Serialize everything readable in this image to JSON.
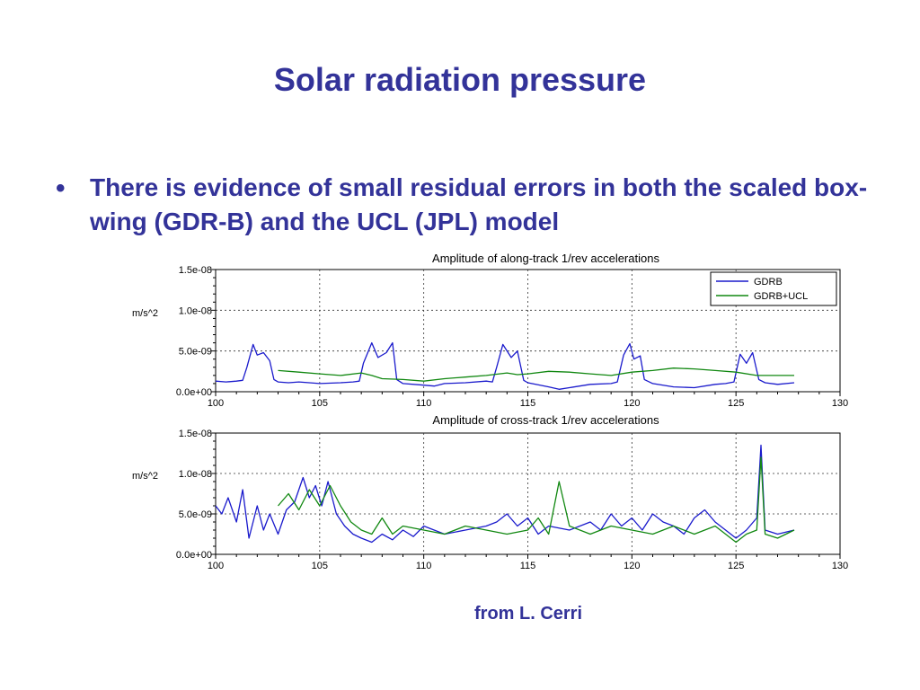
{
  "slide": {
    "title": "Solar radiation pressure",
    "bullet_marker": "•",
    "bullet_text": "There is evidence of small residual errors in both the scaled box-wing (GDR-B) and the UCL (JPL) model",
    "credit": "from L. Cerri"
  },
  "colors": {
    "title": "#333399",
    "gdrb": "#1a1acc",
    "gdrb_ucl": "#118811",
    "grid": "#333333"
  },
  "chart_data": [
    {
      "type": "line",
      "title": "Amplitude of along-track 1/rev accelerations",
      "ylabel": "m/s^2",
      "xlim": [
        100,
        130
      ],
      "ylim": [
        0,
        1.5e-08
      ],
      "xticks": [
        100,
        105,
        110,
        115,
        120,
        125,
        130
      ],
      "xtick_labels": [
        "100",
        "105",
        "110",
        "115",
        "120",
        "125",
        "130"
      ],
      "yticks": [
        0,
        5e-09,
        1e-08,
        1.5e-08
      ],
      "ytick_labels": [
        "0.0e+00",
        "5.0e-09",
        "1.0e-08",
        "1.5e-08"
      ],
      "grid": true,
      "legend": "top-right",
      "series": [
        {
          "name": "GDRB",
          "color": "#1a1acc",
          "x": [
            100,
            100.5,
            101,
            101.3,
            101.5,
            101.8,
            102,
            102.3,
            102.6,
            102.8,
            103,
            103.5,
            104,
            105,
            106,
            106.6,
            106.9,
            107.1,
            107.5,
            107.8,
            108.2,
            108.5,
            108.7,
            109,
            110,
            110.5,
            111,
            112,
            113,
            113.3,
            113.5,
            113.8,
            114.2,
            114.5,
            114.8,
            115,
            116,
            116.5,
            117,
            118,
            119,
            119.3,
            119.6,
            119.9,
            120.1,
            120.4,
            120.6,
            121,
            122,
            123,
            124,
            124.5,
            124.9,
            125.2,
            125.5,
            125.8,
            126.1,
            126.4,
            127,
            127.8
          ],
          "y": [
            1.3e-09,
            1.2e-09,
            1.3e-09,
            1.4e-09,
            3e-09,
            5.8e-09,
            4.5e-09,
            4.8e-09,
            3.8e-09,
            1.5e-09,
            1.2e-09,
            1.1e-09,
            1.2e-09,
            1e-09,
            1.1e-09,
            1.2e-09,
            1.3e-09,
            3.5e-09,
            6e-09,
            4.2e-09,
            4.8e-09,
            6e-09,
            1.5e-09,
            1e-09,
            8e-10,
            7e-10,
            1e-09,
            1.1e-09,
            1.3e-09,
            1.2e-09,
            3e-09,
            5.8e-09,
            4.2e-09,
            5e-09,
            1.4e-09,
            1.1e-09,
            6e-10,
            3e-10,
            5e-10,
            9e-10,
            1e-09,
            1.2e-09,
            4.5e-09,
            5.9e-09,
            4e-09,
            4.4e-09,
            1.5e-09,
            1e-09,
            6e-10,
            5e-10,
            9e-10,
            1e-09,
            1.2e-09,
            4.6e-09,
            3.5e-09,
            4.8e-09,
            1.5e-09,
            1.1e-09,
            9e-10,
            1.1e-09
          ]
        },
        {
          "name": "GDRB+UCL",
          "color": "#118811",
          "x": [
            103,
            104,
            105,
            106,
            107,
            107.5,
            108,
            109,
            110,
            111,
            112,
            113,
            114,
            114.5,
            115,
            116,
            117,
            118,
            119,
            120,
            121,
            122,
            123,
            124,
            125,
            126,
            127,
            127.8
          ],
          "y": [
            2.6e-09,
            2.4e-09,
            2.2e-09,
            2e-09,
            2.3e-09,
            2e-09,
            1.6e-09,
            1.5e-09,
            1.3e-09,
            1.6e-09,
            1.8e-09,
            2e-09,
            2.3e-09,
            2.1e-09,
            2.2e-09,
            2.5e-09,
            2.4e-09,
            2.2e-09,
            2e-09,
            2.4e-09,
            2.6e-09,
            2.9e-09,
            2.8e-09,
            2.6e-09,
            2.4e-09,
            2e-09,
            2e-09,
            2e-09
          ]
        }
      ]
    },
    {
      "type": "line",
      "title": "Amplitude of cross-track 1/rev accelerations",
      "ylabel": "m/s^2",
      "xlim": [
        100,
        130
      ],
      "ylim": [
        0,
        1.5e-08
      ],
      "xticks": [
        100,
        105,
        110,
        115,
        120,
        125,
        130
      ],
      "xtick_labels": [
        "100",
        "105",
        "110",
        "115",
        "120",
        "125",
        "130"
      ],
      "yticks": [
        0,
        5e-09,
        1e-08,
        1.5e-08
      ],
      "ytick_labels": [
        "0.0e+00",
        "5.0e-09",
        "1.0e-08",
        "1.5e-08"
      ],
      "grid": true,
      "series": [
        {
          "name": "GDRB",
          "color": "#1a1acc",
          "x": [
            100,
            100.3,
            100.6,
            101,
            101.3,
            101.6,
            102,
            102.3,
            102.6,
            103,
            103.4,
            103.8,
            104.2,
            104.5,
            104.8,
            105.1,
            105.4,
            105.8,
            106.2,
            106.6,
            107,
            107.5,
            108,
            108.5,
            109,
            109.5,
            110,
            111,
            112,
            113,
            113.5,
            114,
            114.5,
            115,
            115.5,
            116,
            117,
            118,
            118.5,
            119,
            119.5,
            120,
            120.5,
            121,
            121.5,
            122,
            122.5,
            123,
            123.5,
            124,
            124.5,
            125,
            125.5,
            126,
            126.2,
            126.4,
            127,
            127.8
          ],
          "y": [
            6e-09,
            5e-09,
            7e-09,
            4e-09,
            8e-09,
            2e-09,
            6e-09,
            3e-09,
            5e-09,
            2.5e-09,
            5.5e-09,
            6.5e-09,
            9.5e-09,
            7e-09,
            8.5e-09,
            6e-09,
            9e-09,
            5e-09,
            3.5e-09,
            2.5e-09,
            2e-09,
            1.5e-09,
            2.5e-09,
            1.8e-09,
            3e-09,
            2.2e-09,
            3.5e-09,
            2.5e-09,
            3e-09,
            3.5e-09,
            4e-09,
            5e-09,
            3.5e-09,
            4.5e-09,
            2.5e-09,
            3.5e-09,
            3e-09,
            4e-09,
            3e-09,
            5e-09,
            3.5e-09,
            4.5e-09,
            3e-09,
            5e-09,
            4e-09,
            3.5e-09,
            2.5e-09,
            4.5e-09,
            5.5e-09,
            4e-09,
            3e-09,
            2e-09,
            3e-09,
            4.5e-09,
            1.35e-08,
            3e-09,
            2.5e-09,
            3e-09
          ]
        },
        {
          "name": "GDRB+UCL",
          "color": "#118811",
          "x": [
            103,
            103.5,
            104,
            104.5,
            105,
            105.5,
            106,
            106.5,
            107,
            107.5,
            108,
            108.5,
            109,
            110,
            111,
            112,
            113,
            114,
            115,
            115.5,
            116,
            116.5,
            117,
            118,
            119,
            120,
            121,
            122,
            123,
            124,
            125,
            125.5,
            126,
            126.2,
            126.4,
            127,
            127.8
          ],
          "y": [
            6e-09,
            7.5e-09,
            5.5e-09,
            8e-09,
            6e-09,
            8.5e-09,
            6e-09,
            4e-09,
            3e-09,
            2.5e-09,
            4.5e-09,
            2.5e-09,
            3.5e-09,
            3e-09,
            2.5e-09,
            3.5e-09,
            3e-09,
            2.5e-09,
            3e-09,
            4.5e-09,
            2.5e-09,
            9e-09,
            3.5e-09,
            2.5e-09,
            3.5e-09,
            3e-09,
            2.5e-09,
            3.5e-09,
            2.5e-09,
            3.5e-09,
            1.5e-09,
            2.5e-09,
            3e-09,
            1.2e-08,
            2.5e-09,
            2e-09,
            3e-09
          ]
        }
      ]
    }
  ]
}
